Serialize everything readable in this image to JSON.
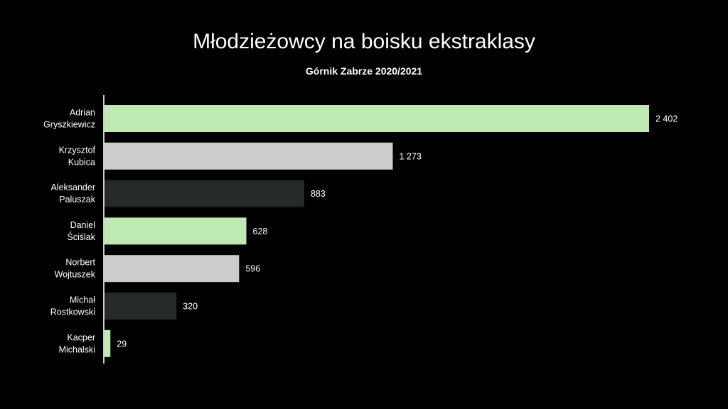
{
  "chart_data": {
    "type": "bar",
    "orientation": "horizontal",
    "title": "Młodzieżowcy na boisku ekstraklasy",
    "subtitle": "Górnik Zabrze 2020/2021",
    "xlabel": "",
    "ylabel": "",
    "grid": false,
    "categories": [
      [
        "Adrian",
        "Gryszkiewicz"
      ],
      [
        "Krzysztof",
        "Kubica"
      ],
      [
        "Aleksander",
        "Paluszak"
      ],
      [
        "Daniel",
        "Ściślak"
      ],
      [
        "Norbert",
        "Wojtuszek"
      ],
      [
        "Michał",
        "Rostkowski"
      ],
      [
        "Kacper",
        "Michalski"
      ]
    ],
    "values": [
      2402,
      1273,
      883,
      628,
      596,
      320,
      29
    ],
    "value_labels": [
      "2 402",
      "1 273",
      "883",
      "628",
      "596",
      "320",
      "29"
    ],
    "bar_colors": [
      "#bfeab2",
      "#cccccc",
      "#262a26",
      "#bfeab2",
      "#cccccc",
      "#262a26",
      "#bfeab2"
    ],
    "xlim": [
      0,
      2402
    ]
  }
}
